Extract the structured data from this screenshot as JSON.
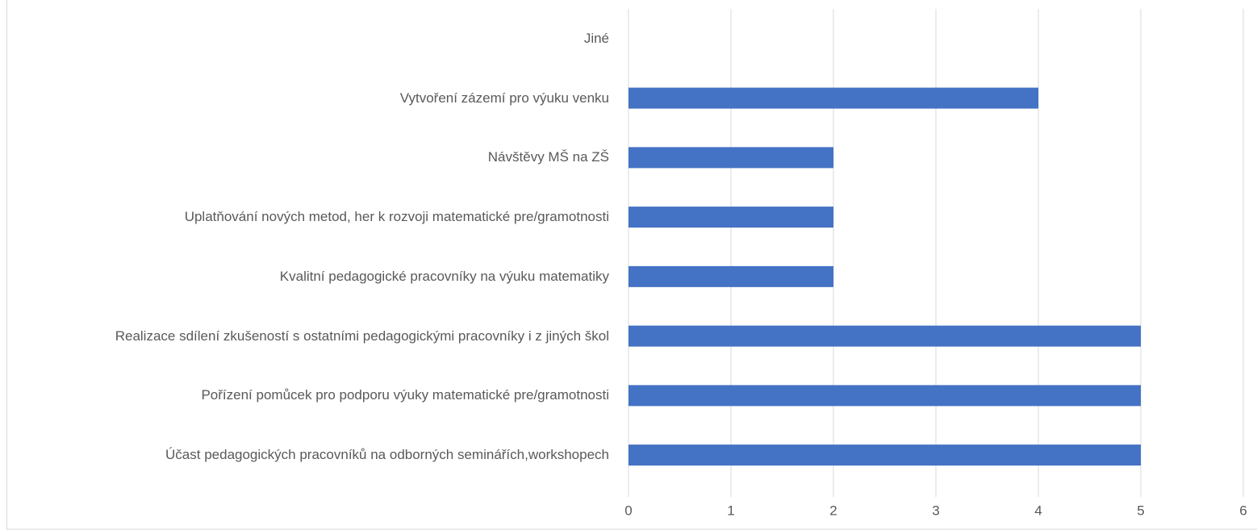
{
  "chart_data": {
    "type": "bar",
    "orientation": "horizontal",
    "categories": [
      "Jiné",
      "Vytvoření zázemí pro výuku venku",
      "Návštěvy MŠ na ZŠ",
      "Uplatňování nových metod, her k rozvoji  matematické pre/gramotnosti",
      "Kvalitní pedagogické pracovníky na výuku matematiky",
      "Realizace sdílení zkušeností s ostatními pedagogickými pracovníky i z jiných škol",
      "Pořízení pomůcek pro podporu výuky matematické pre/gramotnosti",
      "Účast pedagogických pracovníků na odborných seminářích,workshopech"
    ],
    "values": [
      0,
      4,
      2,
      2,
      2,
      5,
      5,
      5
    ],
    "color": "#4472c4",
    "xlim": [
      0,
      6
    ],
    "xticks": [
      0,
      1,
      2,
      3,
      4,
      5,
      6
    ],
    "grid": true
  }
}
